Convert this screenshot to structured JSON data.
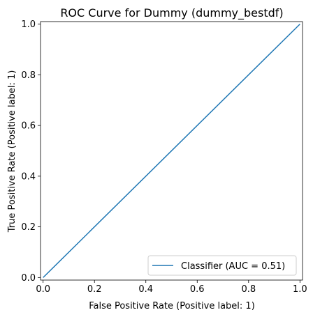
{
  "chart_data": {
    "type": "line",
    "title": "ROC Curve for Dummy (dummy_bestdf)",
    "xlabel": "False Positive Rate (Positive label: 1)",
    "ylabel": "True Positive Rate (Positive label: 1)",
    "xlim": [
      -0.01,
      1.01
    ],
    "ylim": [
      -0.01,
      1.01
    ],
    "xticks": [
      0.0,
      0.2,
      0.4,
      0.6,
      0.8,
      1.0
    ],
    "xtick_labels": [
      "0.0",
      "0.2",
      "0.4",
      "0.6",
      "0.8",
      "1.0"
    ],
    "yticks": [
      0.0,
      0.2,
      0.4,
      0.6,
      0.8,
      1.0
    ],
    "ytick_labels": [
      "0.0",
      "0.2",
      "0.4",
      "0.6",
      "0.8",
      "1.0"
    ],
    "grid": false,
    "legend_position": "lower-right",
    "series": [
      {
        "name": "Classifier (AUC = 0.51)",
        "color": "#1f77b4",
        "x": [
          0.0,
          1.0
        ],
        "y": [
          0.0,
          1.0
        ]
      }
    ]
  }
}
